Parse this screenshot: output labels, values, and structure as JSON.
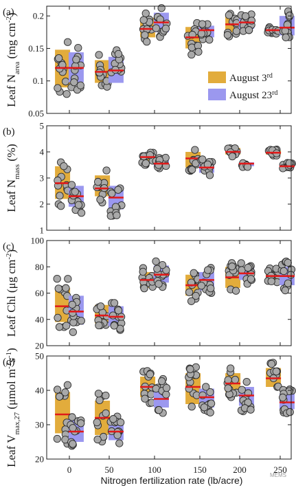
{
  "colors": {
    "aug3": "#e2ac3c",
    "aug23": "#9b98ef",
    "median": "#e01a1a",
    "point": "#a9a9a9",
    "point_edge": "#2c2c2c"
  },
  "chart_data": {
    "type": "box",
    "legend": {
      "placement": "inside-right of panel (a)",
      "entries": [
        {
          "base": "August 3",
          "sup": "rd"
        },
        {
          "base": "August 23",
          "sup": "rd"
        }
      ]
    },
    "x_axis": {
      "label": "Nitrogen fertilization rate (lb/acre)",
      "categories": [
        "0",
        "50",
        "100",
        "150",
        "200",
        "250"
      ]
    },
    "watermark": "MEMS",
    "panels": [
      {
        "letter": "(a)",
        "ylabel": {
          "prefix": "Leaf N",
          "sub": "area",
          "mid": " (mg cm",
          "sup": "-2",
          "suffix": ")"
        },
        "ylim": [
          0.05,
          0.215
        ],
        "yticks": [
          "0.05",
          "0.1",
          "0.15",
          "0.2"
        ],
        "series": [
          {
            "name": "August 3rd",
            "boxes": [
              [
                0.09,
                0.12,
                0.148
              ],
              [
                0.097,
                0.114,
                0.132
              ],
              [
                0.167,
                0.18,
                0.197
              ],
              [
                0.15,
                0.167,
                0.183
              ],
              [
                0.175,
                0.187,
                0.2
              ],
              [
                0.175,
                0.178,
                0.183
              ]
            ]
          },
          {
            "name": "August 23rd",
            "boxes": [
              [
                0.098,
                0.12,
                0.144
              ],
              [
                0.097,
                0.116,
                0.137
              ],
              [
                0.175,
                0.19,
                0.205
              ],
              [
                0.167,
                0.178,
                0.185
              ],
              [
                0.18,
                0.19,
                0.2
              ],
              [
                0.17,
                0.182,
                0.2
              ]
            ]
          }
        ]
      },
      {
        "letter": "(b)",
        "ylabel": {
          "prefix": "Leaf N",
          "sub": "mass",
          "mid": " (%)",
          "sup": "",
          "suffix": ""
        },
        "ylim": [
          1,
          5
        ],
        "yticks": [
          "1",
          "2",
          "3",
          "4",
          "5"
        ],
        "series": [
          {
            "name": "August 3rd",
            "boxes": [
              [
                2.2,
                2.8,
                3.45
              ],
              [
                2.3,
                2.6,
                3.1
              ],
              [
                3.6,
                3.8,
                3.95
              ],
              [
                3.4,
                3.75,
                4.0
              ],
              [
                3.9,
                4.0,
                4.15
              ],
              [
                3.9,
                3.97,
                4.05
              ]
            ]
          },
          {
            "name": "August 23rd",
            "boxes": [
              [
                1.9,
                2.3,
                2.7
              ],
              [
                1.8,
                2.25,
                2.7
              ],
              [
                3.4,
                3.55,
                3.7
              ],
              [
                3.2,
                3.4,
                3.6
              ],
              [
                3.45,
                3.55,
                3.6
              ],
              [
                3.4,
                3.45,
                3.55
              ]
            ]
          }
        ]
      },
      {
        "letter": "(c)",
        "ylabel": {
          "prefix": "Leaf Chl (μg cm",
          "sub": "",
          "mid": "",
          "sup": "-2",
          "suffix": ")"
        },
        "ylim": [
          20,
          100
        ],
        "yticks": [
          "20",
          "40",
          "60",
          "80",
          "100"
        ],
        "series": [
          {
            "name": "August 3rd",
            "boxes": [
              [
                38,
                50,
                64
              ],
              [
                37,
                43,
                51
              ],
              [
                64,
                70,
                76
              ],
              [
                58,
                66,
                74
              ],
              [
                64,
                72,
                80
              ],
              [
                70,
                73,
                77
              ]
            ]
          },
          {
            "name": "August 23rd",
            "boxes": [
              [
                36,
                46,
                58
              ],
              [
                35,
                42,
                50
              ],
              [
                68,
                74,
                81
              ],
              [
                62,
                70,
                76
              ],
              [
                70,
                75,
                80
              ],
              [
                66,
                73,
                80
              ]
            ]
          }
        ]
      },
      {
        "letter": "(d)",
        "ylabel": {
          "prefix": "Leaf V",
          "sub": "max,27",
          "mid": " (μmol m",
          "sup": "-2",
          "suffix": "s",
          "sup2": "-1",
          "suffix2": ")"
        },
        "ylim": [
          20,
          50
        ],
        "yticks": [
          "20",
          "30",
          "40",
          "50"
        ],
        "series": [
          {
            "name": "August 3rd",
            "boxes": [
              [
                27.5,
                33,
                39.5
              ],
              [
                27,
                32,
                37
              ],
              [
                38,
                41,
                44
              ],
              [
                36,
                41,
                45
              ],
              [
                39.5,
                42,
                45
              ],
              [
                41,
                43.5,
                46.5
              ]
            ]
          },
          {
            "name": "August 23rd",
            "boxes": [
              [
                25,
                28,
                31.5
              ],
              [
                25.5,
                28,
                31
              ],
              [
                35,
                37.5,
                41.5
              ],
              [
                35,
                38,
                40.5
              ],
              [
                35.5,
                38.5,
                41
              ],
              [
                34.5,
                36.5,
                39
              ]
            ]
          }
        ]
      }
    ]
  }
}
